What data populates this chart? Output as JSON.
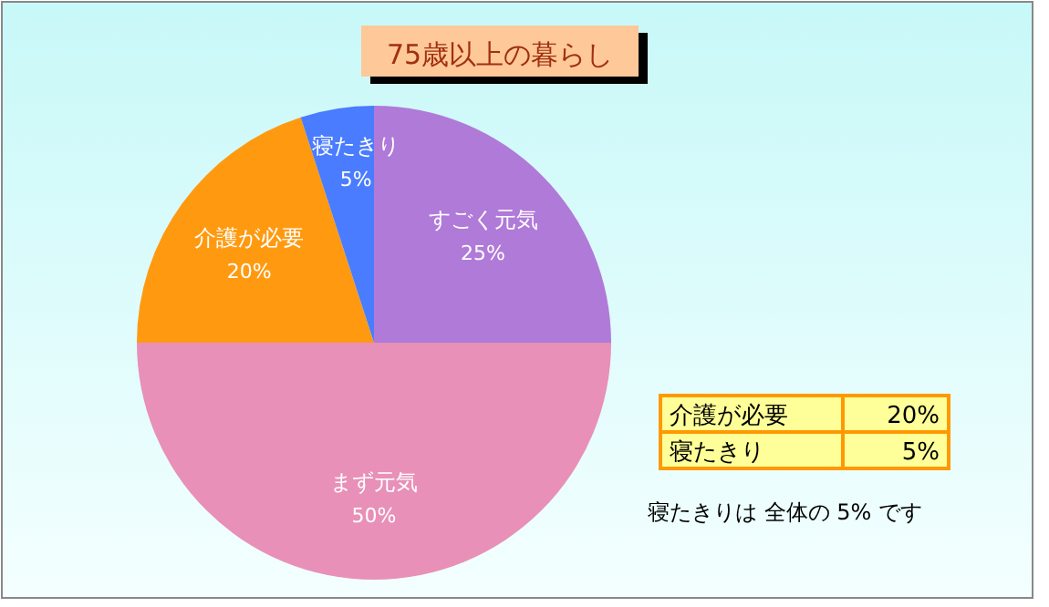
{
  "chart_data": {
    "type": "pie",
    "title": "75歳以上の暮らし",
    "categories": [
      "すごく元気",
      "まず元気",
      "介護が必要",
      "寝たきり"
    ],
    "values": [
      25,
      50,
      20,
      5
    ],
    "value_labels": [
      "25%",
      "50%",
      "20%",
      "5%"
    ],
    "colors": [
      "#b07ad8",
      "#e890b8",
      "#ff9a10",
      "#4a7cff"
    ],
    "annotations": [
      "介護が必要",
      "20%",
      "寝たきり",
      "5%",
      "寝たきりは 全体の 5% です"
    ]
  }
}
